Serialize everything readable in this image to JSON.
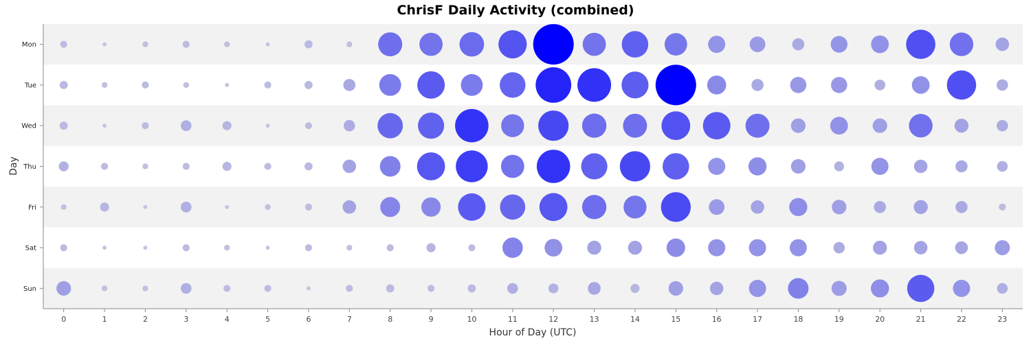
{
  "chart_data": {
    "type": "scatter",
    "title": "ChrisF Daily Activity (combined)",
    "xlabel": "Hour of Day (UTC)",
    "ylabel": "Day",
    "x": [
      0,
      1,
      2,
      3,
      4,
      5,
      6,
      7,
      8,
      9,
      10,
      11,
      12,
      13,
      14,
      15,
      16,
      17,
      18,
      19,
      20,
      21,
      22,
      23
    ],
    "categories": [
      "Mon",
      "Tue",
      "Wed",
      "Thu",
      "Fri",
      "Sat",
      "Sun"
    ],
    "xlim": [
      -0.5,
      23.5
    ],
    "grid": false,
    "series": [
      {
        "category": "Mon",
        "values": [
          3,
          1,
          2,
          3,
          2,
          1,
          4,
          2,
          35,
          33,
          37,
          49,
          100,
          33,
          43,
          31,
          18,
          15,
          9,
          17,
          19,
          52,
          34,
          11
        ]
      },
      {
        "category": "Tue",
        "values": [
          4,
          2,
          3,
          2,
          1,
          3,
          4,
          9,
          29,
          46,
          29,
          40,
          77,
          69,
          44,
          100,
          22,
          9,
          16,
          16,
          7,
          19,
          52,
          8
        ]
      },
      {
        "category": "Wed",
        "values": [
          4,
          1,
          3,
          7,
          5,
          1,
          3,
          8,
          39,
          42,
          68,
          32,
          56,
          36,
          35,
          50,
          46,
          35,
          13,
          19,
          13,
          34,
          12,
          8
        ]
      },
      {
        "category": "Thu",
        "values": [
          6,
          3,
          2,
          3,
          5,
          3,
          4,
          11,
          26,
          48,
          62,
          33,
          68,
          42,
          56,
          43,
          18,
          20,
          13,
          6,
          18,
          11,
          9,
          7
        ]
      },
      {
        "category": "Fri",
        "values": [
          2,
          5,
          1,
          7,
          1,
          2,
          3,
          11,
          24,
          23,
          46,
          39,
          48,
          36,
          32,
          54,
          15,
          11,
          20,
          13,
          9,
          12,
          9,
          3
        ]
      },
      {
        "category": "Sat",
        "values": [
          3,
          1,
          1,
          3,
          2,
          1,
          3,
          2,
          3,
          5,
          3,
          25,
          19,
          12,
          12,
          21,
          18,
          18,
          18,
          8,
          12,
          11,
          10,
          14
        ]
      },
      {
        "category": "Sun",
        "values": [
          13,
          2,
          2,
          7,
          3,
          3,
          1,
          3,
          4,
          3,
          4,
          7,
          6,
          10,
          5,
          13,
          11,
          18,
          26,
          14,
          20,
          45,
          18,
          7
        ]
      }
    ],
    "tick_labels_x": [
      "0",
      "1",
      "2",
      "3",
      "4",
      "5",
      "6",
      "7",
      "8",
      "9",
      "10",
      "11",
      "12",
      "13",
      "14",
      "15",
      "16",
      "17",
      "18",
      "19",
      "20",
      "21",
      "22",
      "23"
    ],
    "tick_labels_y": [
      "Mon",
      "Tue",
      "Wed",
      "Thu",
      "Fri",
      "Sat",
      "Sun"
    ],
    "colors": {
      "low": "#cbcbde",
      "high": "#0000ff",
      "band_alt": "#f2f2f2",
      "band_plain": "#ffffff",
      "axis": "#888888"
    }
  }
}
